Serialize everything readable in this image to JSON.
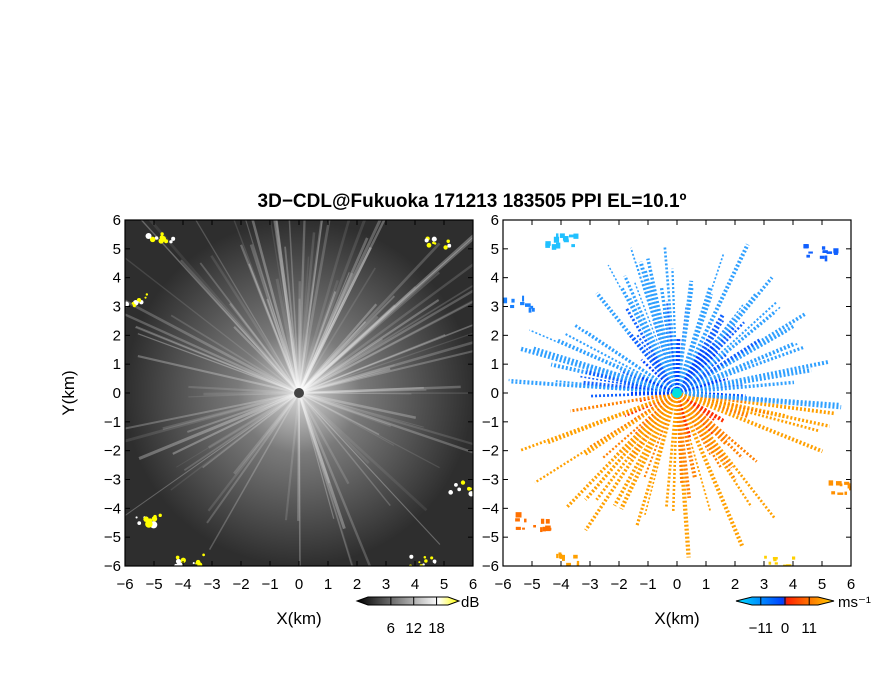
{
  "chart_data": [
    {
      "type": "heatmap",
      "title": "3D−CDL@Fukuoka 171213 183505 PPI EL=10.1º",
      "panel": "left",
      "quantity": "dB",
      "xlabel": "X(km)",
      "ylabel": "Y(km)",
      "xlim": [
        -6,
        6
      ],
      "ylim": [
        -6,
        6
      ],
      "xticks": [
        "−6",
        "−5",
        "−4",
        "−3",
        "−2",
        "−1",
        "0",
        "1",
        "2",
        "3",
        "4",
        "5",
        "6"
      ],
      "yticks": [
        "−6",
        "−5",
        "−4",
        "−3",
        "−2",
        "−1",
        "0",
        "1",
        "2",
        "3",
        "4",
        "5",
        "6"
      ],
      "colorbar": {
        "ticks": [
          "6",
          "12",
          "18"
        ],
        "values": [
          6,
          12,
          18
        ],
        "range": [
          0,
          21
        ],
        "unit": "dB",
        "colors": [
          "#000000",
          "#ffffff",
          "#ffff00"
        ]
      }
    },
    {
      "type": "heatmap",
      "panel": "right",
      "quantity": "radial velocity",
      "xlabel": "X(km)",
      "xlim": [
        -6,
        6
      ],
      "ylim": [
        -6,
        6
      ],
      "xticks": [
        "−6",
        "−5",
        "−4",
        "−3",
        "−2",
        "−1",
        "0",
        "1",
        "2",
        "3",
        "4",
        "5",
        "6"
      ],
      "colorbar": {
        "ticks": [
          "−11",
          "0",
          "11"
        ],
        "values": [
          -11,
          0,
          11
        ],
        "range": [
          -15,
          15
        ],
        "unit": "ms⁻¹",
        "colors": [
          "#00e0ff",
          "#0040ff",
          "#ff2000",
          "#ffd000"
        ]
      }
    }
  ]
}
